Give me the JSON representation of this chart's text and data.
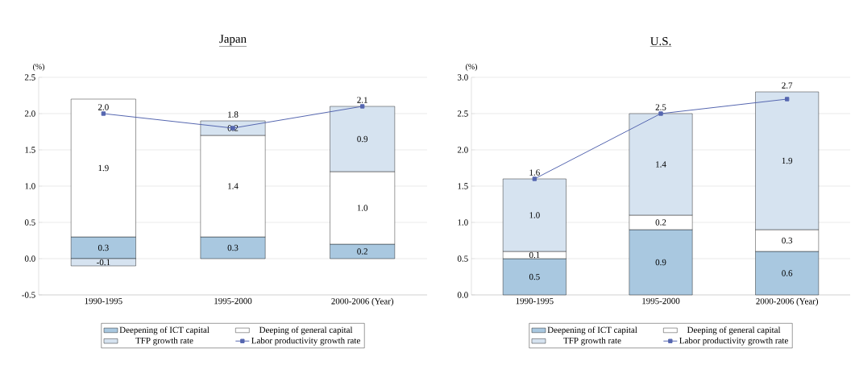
{
  "chart_data": [
    {
      "type": "bar",
      "title": "Japan",
      "ylabel": "(%)",
      "stacked": true,
      "grid": "y",
      "legend": "bottom",
      "categories": [
        "1990-1995",
        "1995-2000",
        "2000-2006 (Year)"
      ],
      "series": [
        {
          "name": "Deepening of ICT capital",
          "color": "#a9c8e0",
          "values": [
            0.3,
            0.3,
            0.2
          ],
          "value_labels": [
            "0.3",
            "0.3",
            "0.2"
          ]
        },
        {
          "name": "Deeping of general capital",
          "color": "#ffffff",
          "values": [
            1.9,
            1.4,
            1.0
          ],
          "value_labels": [
            "1.9",
            "1.4",
            "1.0"
          ]
        },
        {
          "name": "TFP growth rate",
          "color": "#d6e3f0",
          "values": [
            -0.1,
            0.2,
            0.9
          ],
          "value_labels": [
            "-0.1",
            "0.2",
            "0.9"
          ]
        },
        {
          "name": "Labor productivity growth rate",
          "type": "line",
          "marker": "square",
          "color": "#5566b0",
          "values": [
            2.0,
            1.8,
            2.1
          ],
          "value_labels": [
            "2.0",
            "1.8",
            "2.1"
          ]
        }
      ],
      "ylim": [
        -0.5,
        2.5
      ],
      "yticks": [
        {
          "value": -0.5,
          "label": "-0.5"
        },
        {
          "value": 0,
          "label": "0.0"
        },
        {
          "value": 0.5,
          "label": "0.5"
        },
        {
          "value": 1,
          "label": "1.0"
        },
        {
          "value": 1.5,
          "label": "1.5"
        },
        {
          "value": 2,
          "label": "2.0"
        },
        {
          "value": 2.5,
          "label": "2.5"
        }
      ]
    },
    {
      "type": "bar",
      "title": "U.S.",
      "ylabel": "(%)",
      "stacked": true,
      "grid": "y",
      "legend": "bottom",
      "categories": [
        "1990-1995",
        "1995-2000",
        "2000-2006 (Year)"
      ],
      "series": [
        {
          "name": "Deepening of ICT capital",
          "color": "#a9c8e0",
          "values": [
            0.5,
            0.9,
            0.6
          ],
          "value_labels": [
            "0.5",
            "0.9",
            "0.6"
          ]
        },
        {
          "name": "Deeping of general capital",
          "color": "#ffffff",
          "values": [
            0.1,
            0.2,
            0.3
          ],
          "value_labels": [
            "0.1",
            "0.2",
            "0.3"
          ]
        },
        {
          "name": "TFP growth rate",
          "color": "#d6e3f0",
          "values": [
            1.0,
            1.4,
            1.9
          ],
          "value_labels": [
            "1.0",
            "1.4",
            "1.9"
          ]
        },
        {
          "name": "Labor productivity growth rate",
          "type": "line",
          "marker": "square",
          "color": "#5566b0",
          "values": [
            1.6,
            2.5,
            2.7
          ],
          "value_labels": [
            "1.6",
            "2.5",
            "2.7"
          ]
        }
      ],
      "ylim": [
        0,
        3.0
      ],
      "yticks": [
        {
          "value": 0,
          "label": "0.0"
        },
        {
          "value": 0.5,
          "label": "0.5"
        },
        {
          "value": 1,
          "label": "1.0"
        },
        {
          "value": 1.5,
          "label": "1.5"
        },
        {
          "value": 2,
          "label": "2.0"
        },
        {
          "value": 2.5,
          "label": "2.5"
        },
        {
          "value": 3,
          "label": "3.0"
        }
      ]
    }
  ]
}
